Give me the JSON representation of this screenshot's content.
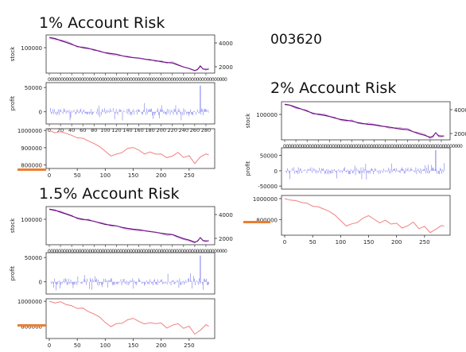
{
  "stock_code": "003620",
  "accent_color": "#ed7d31",
  "colors": {
    "stock": "#5b0b6e",
    "profit": "#7878ee",
    "balance": "#f08080"
  },
  "chart_data": [
    {
      "title": "1% Account Risk",
      "type": "line",
      "panels": [
        {
          "name": "stock",
          "ylabel": "stock",
          "yticks": [
            100000
          ],
          "ytick_labels": [
            "100000"
          ],
          "right_yticks": [
            4000,
            2000
          ],
          "right_ytick_labels": [
            "4000",
            "2000"
          ],
          "ylim": [
            0,
            150000
          ],
          "x": [
            0,
            10,
            20,
            30,
            40,
            50,
            60,
            70,
            80,
            90,
            100,
            110,
            120,
            130,
            140,
            150,
            160,
            170,
            180,
            190,
            200,
            210,
            220,
            230,
            240,
            250,
            260,
            265,
            270,
            275,
            280,
            285
          ],
          "values": [
            140000,
            136000,
            128000,
            121000,
            113000,
            105000,
            100000,
            97000,
            92000,
            86000,
            80000,
            77000,
            74000,
            68000,
            64000,
            61000,
            59000,
            55000,
            52000,
            49000,
            45000,
            42000,
            40000,
            32000,
            24000,
            18000,
            10000,
            14000,
            28000,
            16000,
            15000,
            15000
          ]
        },
        {
          "name": "profit",
          "ylabel": "profit",
          "yticks": [
            50000,
            0
          ],
          "ytick_labels": [
            "50000",
            "0"
          ],
          "ylim": [
            -25000,
            60000
          ]
        },
        {
          "name": "balance",
          "ylabel": "",
          "yticks": [
            1000000,
            900000,
            800000
          ],
          "ytick_labels": [
            "1000000",
            "900000",
            "800000"
          ],
          "ylim": [
            780000,
            1010000
          ],
          "xticks": [
            0,
            50,
            100,
            150,
            200,
            250
          ],
          "xtick_labels": [
            "0",
            "50",
            "100",
            "150",
            "200",
            "250"
          ],
          "x": [
            0,
            10,
            20,
            30,
            40,
            50,
            60,
            70,
            80,
            90,
            100,
            110,
            120,
            130,
            140,
            150,
            160,
            170,
            180,
            190,
            200,
            210,
            220,
            230,
            240,
            250,
            260,
            270,
            280,
            285
          ],
          "values": [
            1000000,
            988000,
            990000,
            982000,
            968000,
            952000,
            958000,
            940000,
            928000,
            912000,
            878000,
            848000,
            862000,
            874000,
            894000,
            902000,
            884000,
            866000,
            878000,
            862000,
            868000,
            842000,
            852000,
            868000,
            838000,
            848000,
            812000,
            852000,
            862000,
            858000
          ]
        }
      ],
      "dense_xticks": [
        0,
        20,
        40,
        60,
        80,
        100,
        120,
        140,
        160,
        180,
        200,
        220,
        240,
        260,
        280
      ],
      "dense_xtick_labels": [
        "0",
        "20",
        "40",
        "60",
        "80",
        "100",
        "120",
        "140",
        "160",
        "180",
        "200",
        "220",
        "240",
        "260",
        "280"
      ]
    },
    {
      "title": "1.5% Account Risk",
      "type": "line",
      "panels": [
        {
          "name": "stock",
          "ylabel": "stock",
          "yticks": [
            100000
          ],
          "ytick_labels": [
            "100000"
          ],
          "right_yticks": [
            4000,
            2000
          ],
          "right_ytick_labels": [
            "4000",
            "2000"
          ],
          "ylim": [
            0,
            150000
          ],
          "x": [
            0,
            10,
            20,
            30,
            40,
            50,
            60,
            70,
            80,
            90,
            100,
            110,
            120,
            130,
            140,
            150,
            160,
            170,
            180,
            190,
            200,
            210,
            220,
            230,
            240,
            250,
            260,
            265,
            270,
            275,
            280,
            285
          ],
          "values": [
            140000,
            136000,
            128000,
            121000,
            113000,
            105000,
            100000,
            97000,
            92000,
            86000,
            80000,
            77000,
            74000,
            68000,
            64000,
            61000,
            59000,
            55000,
            52000,
            49000,
            45000,
            42000,
            40000,
            32000,
            24000,
            18000,
            10000,
            14000,
            28000,
            16000,
            15000,
            15000
          ]
        },
        {
          "name": "profit",
          "ylabel": "profit",
          "yticks": [
            50000,
            0
          ],
          "ytick_labels": [
            "50000",
            "0"
          ],
          "ylim": [
            -25000,
            60000
          ]
        },
        {
          "name": "balance",
          "ylabel": "",
          "yticks": [
            1000000,
            800000
          ],
          "ytick_labels": [
            "1000000",
            "800000"
          ],
          "ylim": [
            700000,
            1020000
          ],
          "xticks": [
            0,
            50,
            100,
            150,
            200,
            250
          ],
          "xtick_labels": [
            "0",
            "50",
            "100",
            "150",
            "200",
            "250"
          ],
          "x": [
            0,
            10,
            20,
            30,
            40,
            50,
            60,
            70,
            80,
            90,
            100,
            110,
            120,
            130,
            140,
            150,
            160,
            170,
            180,
            190,
            200,
            210,
            220,
            230,
            240,
            250,
            260,
            270,
            280,
            285
          ],
          "values": [
            1000000,
            985000,
            988000,
            975000,
            958000,
            935000,
            942000,
            915000,
            900000,
            880000,
            835000,
            790000,
            812000,
            828000,
            858000,
            868000,
            842000,
            818000,
            834000,
            812000,
            822000,
            786000,
            800000,
            822000,
            780000,
            796000,
            742000,
            768000,
            806000,
            800000
          ]
        }
      ],
      "dense_xticks": [
        0,
        20,
        40,
        60,
        80,
        100,
        120,
        140,
        160,
        180,
        200,
        220,
        240,
        260,
        280
      ],
      "dense_xtick_labels": [
        "0",
        "20",
        "40",
        "60",
        "80",
        "100",
        "120",
        "140",
        "160",
        "180",
        "200",
        "220",
        "240",
        "260",
        "280"
      ]
    },
    {
      "title": "2% Account Risk",
      "type": "line",
      "panels": [
        {
          "name": "stock",
          "ylabel": "stock",
          "yticks": [
            100000
          ],
          "ytick_labels": [
            "100000"
          ],
          "right_yticks": [
            4000,
            2000
          ],
          "right_ytick_labels": [
            "4000",
            "2000"
          ],
          "ylim": [
            0,
            150000
          ],
          "x": [
            0,
            10,
            20,
            30,
            40,
            50,
            60,
            70,
            80,
            90,
            100,
            110,
            120,
            130,
            140,
            150,
            160,
            170,
            180,
            190,
            200,
            210,
            220,
            230,
            240,
            250,
            260,
            265,
            270,
            275,
            280,
            285
          ],
          "values": [
            140000,
            136000,
            128000,
            121000,
            113000,
            105000,
            100000,
            97000,
            92000,
            86000,
            80000,
            77000,
            74000,
            68000,
            64000,
            61000,
            59000,
            55000,
            52000,
            49000,
            45000,
            42000,
            40000,
            32000,
            24000,
            18000,
            10000,
            14000,
            28000,
            16000,
            15000,
            15000
          ]
        },
        {
          "name": "profit",
          "ylabel": "profit",
          "yticks": [
            50000,
            0,
            -50000
          ],
          "ytick_labels": [
            "50000",
            "0",
            "-50000"
          ],
          "ylim": [
            -60000,
            75000
          ]
        },
        {
          "name": "balance",
          "ylabel": "",
          "yticks": [
            1000000,
            800000
          ],
          "ytick_labels": [
            "1000000",
            "800000"
          ],
          "ylim": [
            650000,
            1030000
          ],
          "xticks": [
            0,
            50,
            100,
            150,
            200,
            250
          ],
          "xtick_labels": [
            "0",
            "50",
            "100",
            "150",
            "200",
            "250"
          ],
          "x": [
            0,
            10,
            20,
            30,
            40,
            50,
            60,
            70,
            80,
            90,
            100,
            110,
            120,
            130,
            140,
            150,
            160,
            170,
            180,
            190,
            200,
            210,
            220,
            230,
            240,
            250,
            260,
            270,
            280,
            285
          ],
          "values": [
            1000000,
            982000,
            986000,
            970000,
            948000,
            920000,
            928000,
            896000,
            876000,
            850000,
            790000,
            732000,
            760000,
            780000,
            818000,
            830000,
            796000,
            766000,
            786000,
            758000,
            770000,
            724000,
            742000,
            770000,
            716000,
            736000,
            668000,
            700000,
            752000,
            744000
          ]
        }
      ],
      "dense_xticks": [
        0,
        20,
        40,
        60,
        80,
        100,
        120,
        140,
        160,
        180,
        200,
        220,
        240,
        260,
        280
      ],
      "dense_xtick_labels": [
        "0",
        "20",
        "40",
        "60",
        "80",
        "100",
        "120",
        "140",
        "160",
        "180",
        "200",
        "220",
        "240",
        "260",
        "280"
      ]
    }
  ]
}
